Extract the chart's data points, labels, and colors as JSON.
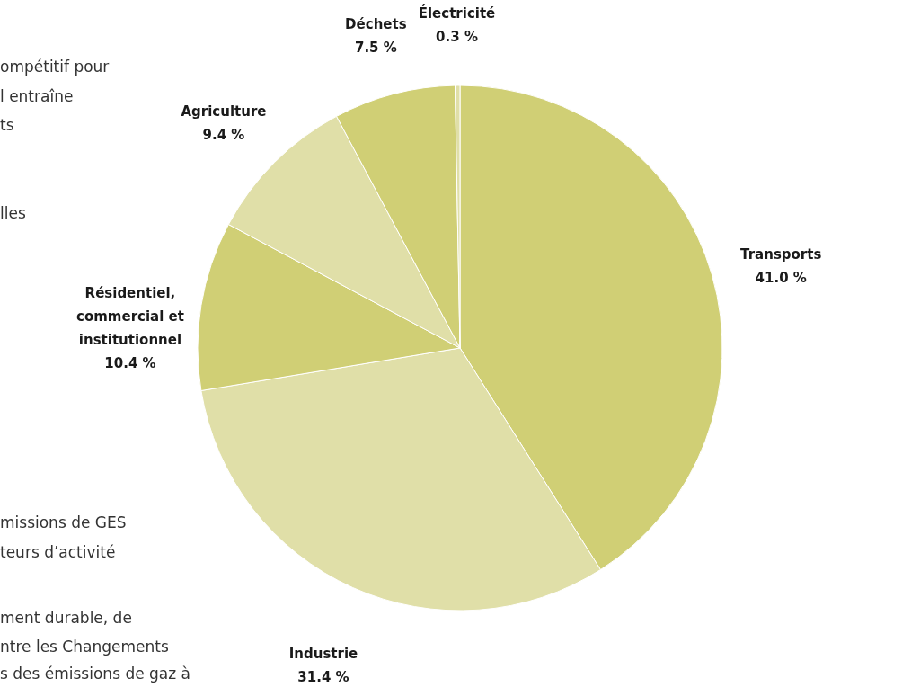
{
  "chart_data": {
    "type": "pie",
    "categories": [
      "Transports",
      "Industrie",
      "Résidentiel, commercial et institutionnel",
      "Agriculture",
      "Déchets",
      "Électricité"
    ],
    "values": [
      41.0,
      31.4,
      10.4,
      9.4,
      7.5,
      0.3
    ],
    "value_labels": [
      "41.0 %",
      "31.4 %",
      "10.4 %",
      "9.4 %",
      "7.5 %",
      "0.3 %"
    ],
    "colors": [
      "#d0cf75",
      "#e0dfa8",
      "#d0cf75",
      "#e0dfa8",
      "#d0cf75",
      "#e0dfa8"
    ],
    "annotations": [
      "ompétitif pour",
      "l entraîne",
      "ts",
      "lles",
      "missions de GES",
      "teurs d’activité",
      "ment durable, de",
      "ntre les Changements",
      "s des émissions de gaz à"
    ]
  }
}
